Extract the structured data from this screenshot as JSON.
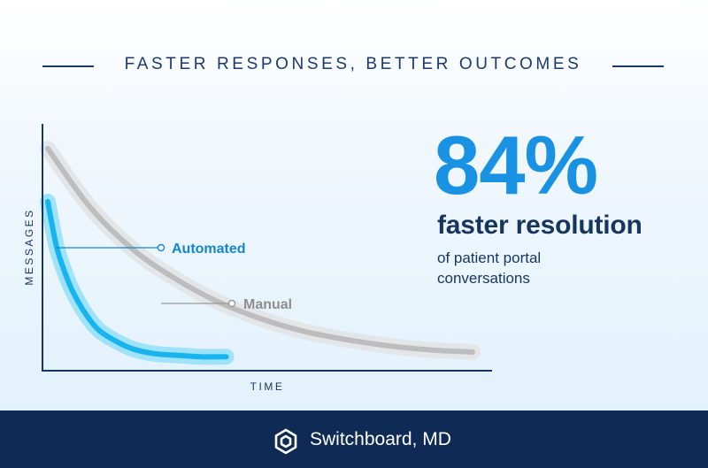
{
  "header": {
    "title": "FASTER RESPONSES, BETTER OUTCOMES"
  },
  "stat": {
    "value": "84%",
    "headline": "faster resolution",
    "subtext": "of patient portal conversations"
  },
  "footer": {
    "brand": "Switchboard, MD",
    "logo_icon": "switchboard-logo-icon"
  },
  "colors": {
    "navy": "#0f2b55",
    "title_navy": "#1b3a6b",
    "accent_blue": "#1a92e3",
    "automated_line": "#18b4ee",
    "manual_line": "#bdbdbd"
  },
  "chart_data": {
    "type": "line",
    "title": "",
    "xlabel": "TIME",
    "ylabel": "MESSAGES",
    "grid": false,
    "series": [
      {
        "name": "Automated",
        "x": [
          0,
          2,
          4,
          6,
          9,
          12,
          16,
          20,
          25,
          30,
          36,
          42
        ],
        "y": [
          100,
          72,
          55,
          42,
          28,
          18,
          11,
          6,
          3,
          2,
          1,
          1
        ]
      },
      {
        "name": "Manual",
        "x": [
          0,
          10,
          20,
          30,
          40,
          50,
          60,
          70,
          80,
          90,
          100
        ],
        "y": [
          100,
          72,
          52,
          38,
          27,
          19,
          13,
          9,
          6,
          4,
          3
        ]
      }
    ],
    "ylim": [
      0,
      100
    ],
    "xlim": [
      0,
      100
    ]
  }
}
